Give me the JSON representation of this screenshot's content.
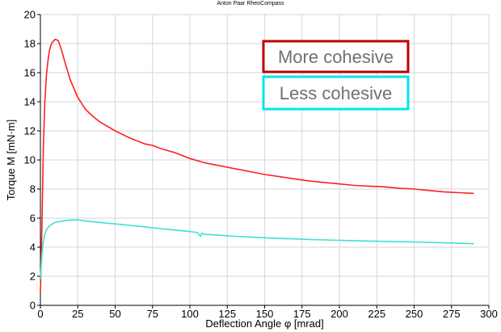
{
  "chart_data": {
    "type": "line",
    "title": "Anton Paar RheoCompass",
    "xlabel": "Deflection Angle φ [mrad]",
    "ylabel": "Torque M [mN·m]",
    "xlim": [
      0,
      300
    ],
    "ylim": [
      0,
      20
    ],
    "xticks": [
      0,
      25,
      50,
      75,
      100,
      125,
      150,
      175,
      200,
      225,
      250,
      275,
      300
    ],
    "yticks": [
      0,
      2,
      4,
      6,
      8,
      10,
      12,
      14,
      16,
      18,
      20
    ],
    "grid": true,
    "legend_placement": "top-right",
    "series": [
      {
        "name": "More cohesive",
        "color": "#ff2020",
        "legend_border_color": "#c00000",
        "x": [
          0,
          1,
          2,
          3,
          4,
          5,
          6,
          7,
          8,
          10,
          12,
          14,
          17,
          20,
          25,
          30,
          35,
          40,
          50,
          60,
          70,
          75,
          80,
          90,
          100,
          110,
          120,
          130,
          140,
          150,
          160,
          170,
          180,
          190,
          200,
          210,
          220,
          230,
          240,
          250,
          260,
          270,
          280,
          290
        ],
        "y": [
          0.8,
          5.5,
          11,
          14,
          15.8,
          16.8,
          17.5,
          17.9,
          18.1,
          18.3,
          18.2,
          17.6,
          16.5,
          15.5,
          14.3,
          13.5,
          13.0,
          12.6,
          12.0,
          11.5,
          11.1,
          11.0,
          10.8,
          10.5,
          10.1,
          9.8,
          9.6,
          9.4,
          9.2,
          9.0,
          8.85,
          8.7,
          8.55,
          8.45,
          8.35,
          8.25,
          8.2,
          8.15,
          8.05,
          8.0,
          7.9,
          7.8,
          7.75,
          7.7
        ]
      },
      {
        "name": "Less cohesive",
        "color": "#40e0d0",
        "legend_border_color": "#00e5ee",
        "x": [
          0,
          1,
          2,
          3,
          4,
          5,
          6,
          8,
          10,
          12,
          15,
          20,
          25,
          30,
          40,
          50,
          60,
          70,
          80,
          90,
          100,
          105,
          107,
          108,
          110,
          120,
          130,
          140,
          150,
          160,
          170,
          180,
          190,
          200,
          210,
          220,
          230,
          240,
          250,
          260,
          270,
          280,
          290
        ],
        "y": [
          1.8,
          3.5,
          4.4,
          4.9,
          5.2,
          5.35,
          5.45,
          5.6,
          5.7,
          5.75,
          5.8,
          5.87,
          5.88,
          5.8,
          5.7,
          5.6,
          5.5,
          5.4,
          5.28,
          5.18,
          5.08,
          5.0,
          4.75,
          4.95,
          4.88,
          4.82,
          4.75,
          4.7,
          4.65,
          4.6,
          4.57,
          4.53,
          4.5,
          4.47,
          4.45,
          4.42,
          4.4,
          4.38,
          4.36,
          4.33,
          4.3,
          4.27,
          4.24
        ]
      }
    ]
  }
}
